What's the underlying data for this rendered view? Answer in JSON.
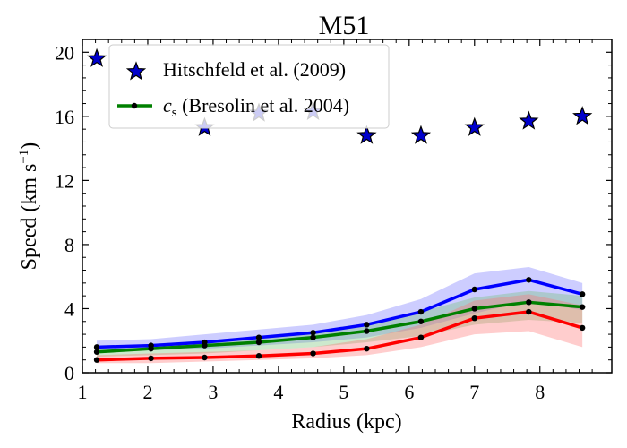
{
  "chart_data": {
    "type": "line",
    "title": "M51",
    "xlabel": "Radius (kpc)",
    "ylabel": "Speed (km s",
    "ylabel_exp": "−1",
    "ylabel_close": ")",
    "xlim": [
      1,
      9.1
    ],
    "ylim": [
      0,
      20.8
    ],
    "xticks": [
      1,
      2,
      3,
      4,
      5,
      6,
      7,
      8
    ],
    "yticks": [
      0,
      4,
      8,
      12,
      16,
      20
    ],
    "xtick_labels": [
      "1",
      "2",
      "3",
      "4",
      "5",
      "6",
      "7",
      "8"
    ],
    "ytick_labels": [
      "0",
      "4",
      "8",
      "12",
      "16",
      "20"
    ],
    "grid": false,
    "legend": {
      "placement": "top-left",
      "entries": [
        {
          "label": "Hitschfeld et al. (2009)"
        },
        {
          "label_sym": "c",
          "label_sub": "s",
          "label_rest": " (Bresolin et al. 2004)"
        }
      ]
    },
    "stars": {
      "color": "#0000cc",
      "x": [
        1.22,
        2.87,
        3.7,
        4.53,
        5.35,
        6.18,
        7.0,
        7.83,
        8.65
      ],
      "y": [
        19.6,
        15.3,
        16.2,
        16.3,
        14.8,
        14.8,
        15.3,
        15.7,
        16.0
      ]
    },
    "series": [
      {
        "color": "#0000ff",
        "band_color": "#7070ff",
        "x": [
          1.22,
          2.05,
          2.87,
          3.7,
          4.53,
          5.35,
          6.18,
          7.0,
          7.83,
          8.65
        ],
        "y": [
          1.6,
          1.7,
          1.9,
          2.2,
          2.5,
          3.0,
          3.8,
          5.2,
          5.8,
          4.9
        ],
        "band_lo": [
          1.3,
          1.4,
          1.5,
          1.7,
          1.9,
          2.2,
          2.8,
          3.7,
          4.5,
          3.9
        ],
        "band_hi": [
          2.0,
          2.1,
          2.4,
          2.7,
          3.0,
          3.6,
          4.6,
          6.2,
          6.6,
          5.6
        ]
      },
      {
        "color": "#008000",
        "band_color": "#70c070",
        "x": [
          1.22,
          2.05,
          2.87,
          3.7,
          4.53,
          5.35,
          6.18,
          7.0,
          7.83,
          8.65
        ],
        "y": [
          1.3,
          1.5,
          1.7,
          1.9,
          2.2,
          2.6,
          3.2,
          4.0,
          4.4,
          4.1
        ],
        "band_lo": [
          1.0,
          1.1,
          1.2,
          1.4,
          1.6,
          1.9,
          2.3,
          3.0,
          3.3,
          3.1
        ],
        "band_hi": [
          1.6,
          1.8,
          2.0,
          2.3,
          2.6,
          3.1,
          3.8,
          4.7,
          5.1,
          4.8
        ]
      },
      {
        "color": "#ff0000",
        "band_color": "#ff7070",
        "x": [
          1.22,
          2.05,
          2.87,
          3.7,
          4.53,
          5.35,
          6.18,
          7.0,
          7.83,
          8.65
        ],
        "y": [
          0.8,
          0.9,
          0.95,
          1.05,
          1.2,
          1.5,
          2.2,
          3.4,
          3.8,
          2.8
        ],
        "band_lo": [
          0.6,
          0.6,
          0.7,
          0.8,
          0.9,
          1.1,
          1.6,
          2.4,
          2.6,
          1.6
        ],
        "band_hi": [
          1.1,
          1.2,
          1.3,
          1.4,
          1.6,
          2.1,
          3.0,
          4.5,
          4.9,
          4.2
        ]
      }
    ]
  }
}
